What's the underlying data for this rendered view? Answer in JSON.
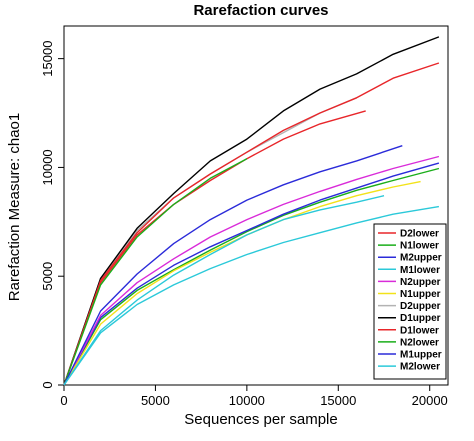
{
  "chart_data": {
    "type": "line",
    "title": "Rarefaction curves",
    "xlabel": "Sequences per sample",
    "ylabel": "Rarefaction Measure: chao1",
    "xlim": [
      0,
      21000
    ],
    "ylim": [
      0,
      16500
    ],
    "xticks": [
      0,
      5000,
      10000,
      15000,
      20000
    ],
    "yticks": [
      0,
      5000,
      10000,
      15000
    ],
    "grid": false,
    "legend_position": "bottom-right",
    "series": [
      {
        "name": "D2lower",
        "color": "#E8262A",
        "x": [
          0,
          2000,
          4000,
          6000,
          8000,
          10000,
          12000,
          14000,
          16500
        ],
        "y": [
          0,
          4700,
          6900,
          8300,
          9400,
          10400,
          11300,
          12000,
          12600
        ]
      },
      {
        "name": "N1lower",
        "color": "#1AAE1A",
        "x": [
          0,
          2000,
          4000,
          6000,
          8000,
          10000,
          12000,
          14000,
          16000,
          18000,
          20500
        ],
        "y": [
          0,
          3000,
          4350,
          5300,
          6200,
          7050,
          7800,
          8400,
          8950,
          9400,
          9950
        ]
      },
      {
        "name": "M2upper",
        "color": "#2B2BD9",
        "x": [
          0,
          2000,
          4000,
          6000,
          8000,
          10000,
          12000,
          14000,
          16000,
          18000,
          20500
        ],
        "y": [
          0,
          3100,
          4450,
          5500,
          6350,
          7100,
          7850,
          8500,
          9050,
          9600,
          10200
        ]
      },
      {
        "name": "M1lower",
        "color": "#2BC9D9",
        "x": [
          0,
          2000,
          4000,
          6000,
          8000,
          10000,
          12000,
          14000,
          16000,
          18000,
          20500
        ],
        "y": [
          0,
          2400,
          3700,
          4600,
          5350,
          6000,
          6550,
          7000,
          7450,
          7850,
          8200
        ]
      },
      {
        "name": "N2upper",
        "color": "#D92BD9",
        "x": [
          0,
          2000,
          4000,
          6000,
          8000,
          10000,
          12000,
          14000,
          16000,
          18000,
          20500
        ],
        "y": [
          0,
          3200,
          4700,
          5800,
          6800,
          7600,
          8300,
          8900,
          9450,
          9950,
          10500
        ]
      },
      {
        "name": "N1upper",
        "color": "#F2E21A",
        "x": [
          0,
          2000,
          4000,
          6000,
          8000,
          10000,
          12000,
          14000,
          16000,
          18000,
          19500
        ],
        "y": [
          0,
          2800,
          4200,
          5250,
          6100,
          6900,
          7600,
          8200,
          8700,
          9100,
          9350
        ]
      },
      {
        "name": "D2upper",
        "color": "#B3B3B3",
        "x": [
          0,
          2000,
          4000,
          6000,
          8000,
          10000,
          12000,
          14000,
          16000
        ],
        "y": [
          0,
          4900,
          7100,
          8600,
          9700,
          10700,
          11600,
          12500,
          13200
        ]
      },
      {
        "name": "D1upper",
        "color": "#000000",
        "x": [
          0,
          2000,
          4000,
          6000,
          8000,
          10000,
          12000,
          14000,
          16000,
          18000,
          20500
        ],
        "y": [
          0,
          4900,
          7200,
          8800,
          10300,
          11300,
          12600,
          13600,
          14300,
          15200,
          16000
        ]
      },
      {
        "name": "D1lower",
        "color": "#E8262A",
        "x": [
          0,
          2000,
          4000,
          6000,
          8000,
          10000,
          12000,
          14000,
          16000,
          18000,
          20500
        ],
        "y": [
          0,
          4800,
          7000,
          8600,
          9700,
          10700,
          11700,
          12500,
          13200,
          14100,
          14800
        ]
      },
      {
        "name": "N2lower",
        "color": "#1AAE1A",
        "x": [
          0,
          2000,
          4000,
          6000,
          8000,
          10000
        ],
        "y": [
          0,
          4600,
          6800,
          8300,
          9500,
          10400
        ]
      },
      {
        "name": "M1upper",
        "color": "#2B2BD9",
        "x": [
          0,
          2000,
          4000,
          6000,
          8000,
          10000,
          12000,
          14000,
          16000,
          18500
        ],
        "y": [
          0,
          3400,
          5100,
          6500,
          7600,
          8500,
          9200,
          9800,
          10300,
          11000
        ]
      },
      {
        "name": "M2lower",
        "color": "#2BC9D9",
        "x": [
          0,
          2000,
          4000,
          6000,
          8000,
          10000,
          12000,
          14000,
          16000,
          17500
        ],
        "y": [
          0,
          2500,
          3900,
          5050,
          6000,
          6900,
          7600,
          8050,
          8400,
          8700
        ]
      }
    ]
  }
}
